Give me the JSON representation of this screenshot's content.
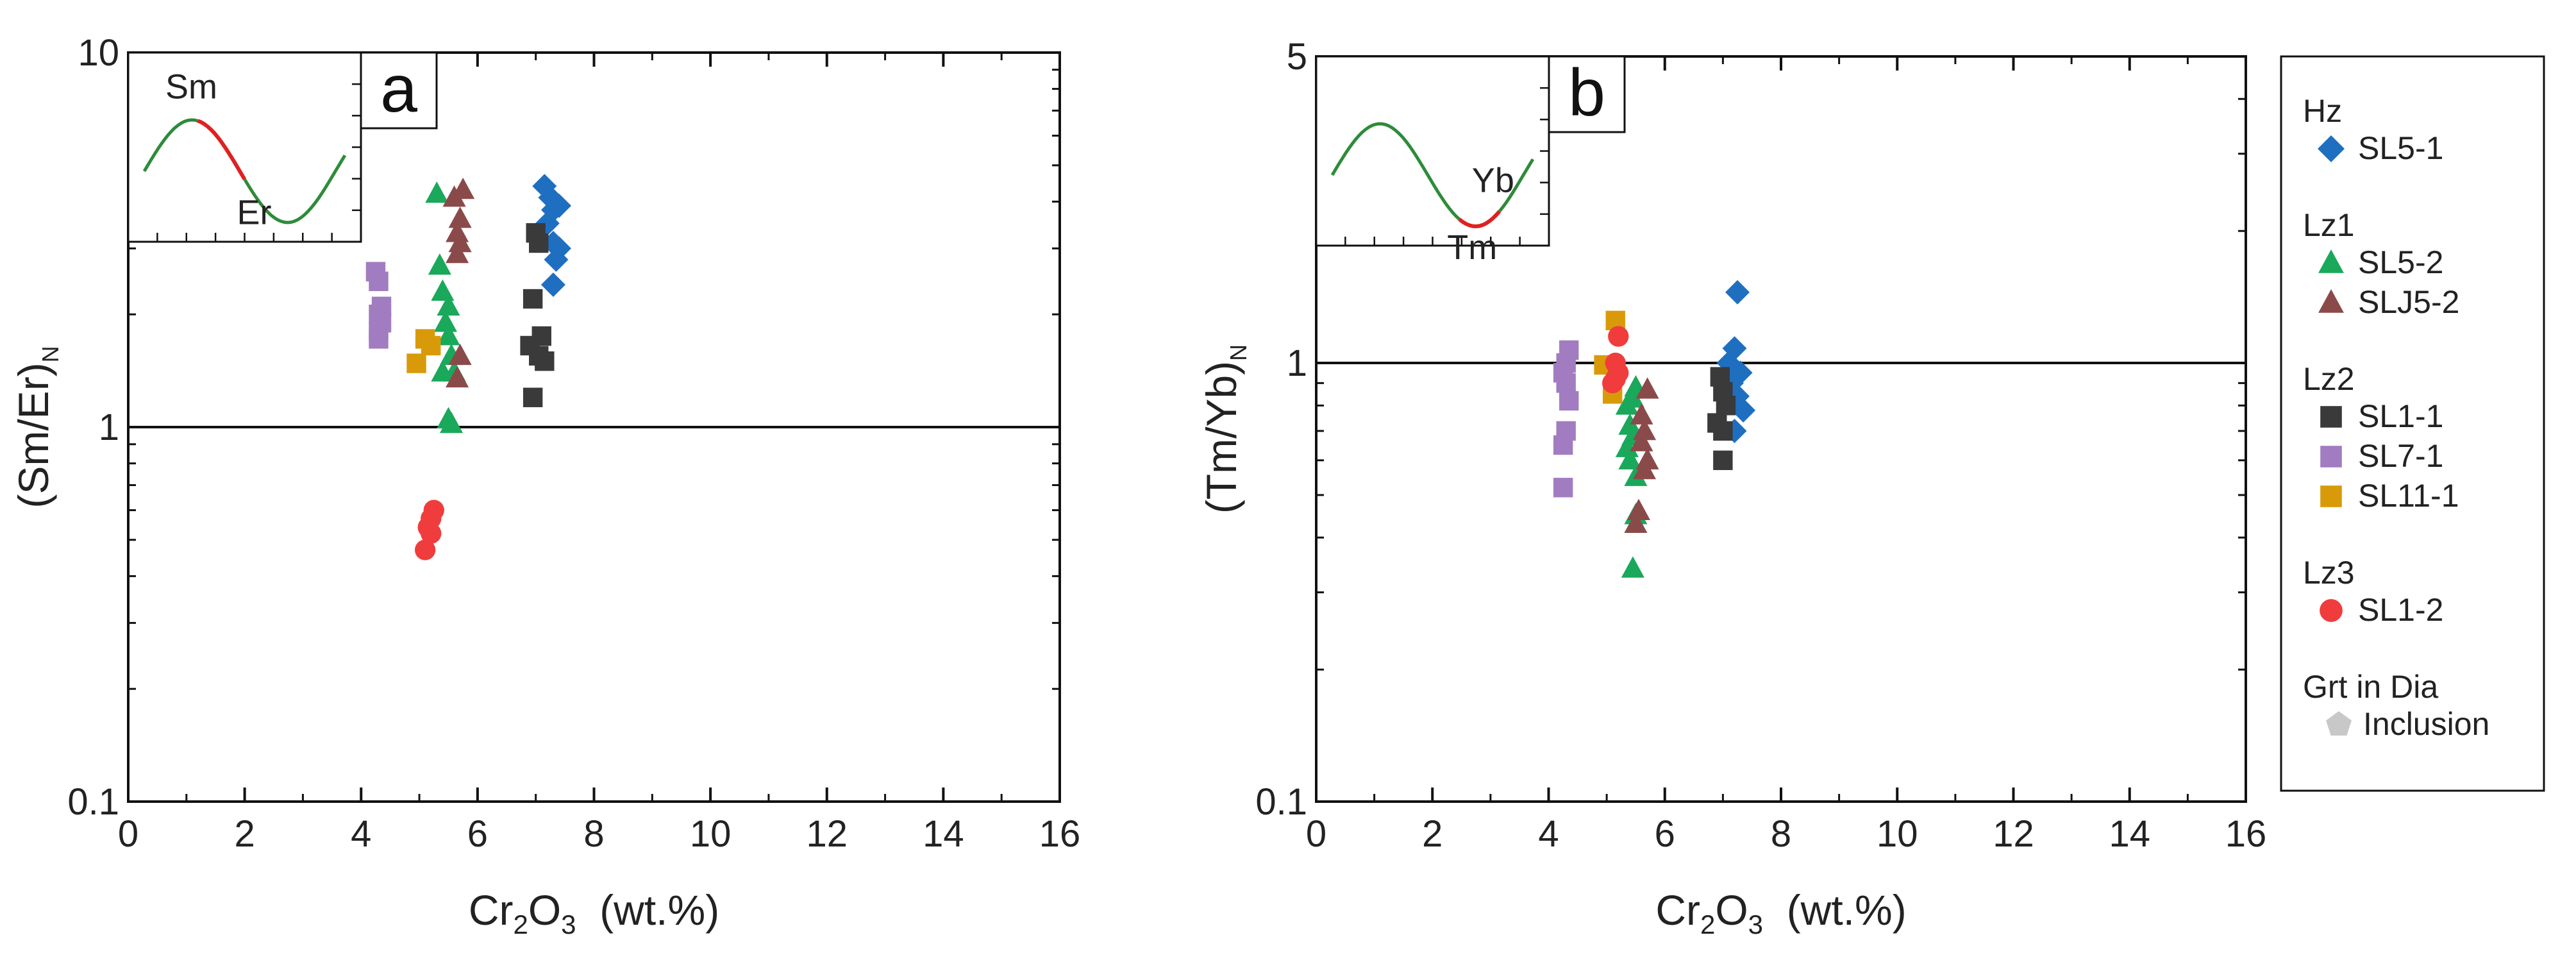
{
  "chart_data": [
    {
      "type": "scatter",
      "panel_label": "a",
      "title": "",
      "xlabel": {
        "main": "Cr",
        "sub1": "2",
        "mid": "O",
        "sub2": "3",
        "unit": "(wt.%)"
      },
      "ylabel": {
        "main": "(Sm/Er)",
        "sub": "N"
      },
      "xlim": [
        0,
        16
      ],
      "ylim": [
        0.1,
        10
      ],
      "yscale": "log",
      "xticks": [
        0,
        2,
        4,
        6,
        8,
        10,
        12,
        14,
        16
      ],
      "yticks": [
        0.1,
        1,
        10
      ],
      "ytick_labels": [
        "0.1",
        "1",
        "10"
      ],
      "reference_line_y": 1,
      "inset": {
        "label_left": "Sm",
        "label_right": "Er",
        "highlight": "Sm-Er segment"
      },
      "series": [
        {
          "name": "SL5-1",
          "group": "Hz",
          "marker": "diamond",
          "color": "#1f6fc0",
          "points": [
            [
              7.15,
              4.4
            ],
            [
              7.25,
              4.1
            ],
            [
              7.3,
              3.8
            ],
            [
              7.4,
              3.9
            ],
            [
              7.2,
              3.5
            ],
            [
              7.3,
              3.1
            ],
            [
              7.4,
              3.0
            ],
            [
              7.35,
              2.8
            ],
            [
              7.3,
              2.4
            ]
          ]
        },
        {
          "name": "SL5-2",
          "group": "Lz1",
          "marker": "triangle",
          "color": "#1aa85a",
          "points": [
            [
              5.3,
              4.2
            ],
            [
              5.35,
              2.7
            ],
            [
              5.4,
              2.3
            ],
            [
              5.5,
              2.1
            ],
            [
              5.45,
              1.9
            ],
            [
              5.5,
              1.75
            ],
            [
              5.55,
              1.55
            ],
            [
              5.4,
              1.4
            ],
            [
              5.6,
              1.4
            ],
            [
              5.5,
              1.05
            ],
            [
              5.55,
              1.02
            ]
          ]
        },
        {
          "name": "SLJ5-2",
          "group": "Lz1",
          "marker": "triangle",
          "color": "#8b4a4a",
          "points": [
            [
              5.75,
              4.3
            ],
            [
              5.6,
              4.1
            ],
            [
              5.7,
              3.6
            ],
            [
              5.65,
              3.3
            ],
            [
              5.7,
              3.1
            ],
            [
              5.65,
              2.9
            ],
            [
              5.7,
              1.55
            ],
            [
              5.65,
              1.35
            ]
          ]
        },
        {
          "name": "SL1-1",
          "group": "Lz2",
          "marker": "square",
          "color": "#3a3a3a",
          "points": [
            [
              7.0,
              3.3
            ],
            [
              7.05,
              3.1
            ],
            [
              6.95,
              2.2
            ],
            [
              7.1,
              1.75
            ],
            [
              6.9,
              1.65
            ],
            [
              7.05,
              1.55
            ],
            [
              7.15,
              1.5
            ],
            [
              6.95,
              1.2
            ]
          ]
        },
        {
          "name": "SL7-1",
          "group": "Lz2",
          "marker": "square",
          "color": "#a27cc0",
          "points": [
            [
              4.25,
              2.6
            ],
            [
              4.3,
              2.45
            ],
            [
              4.35,
              2.1
            ],
            [
              4.3,
              2.0
            ],
            [
              4.35,
              1.9
            ],
            [
              4.3,
              1.8
            ],
            [
              4.3,
              1.72
            ]
          ]
        },
        {
          "name": "SL11-1",
          "group": "Lz2",
          "marker": "square",
          "color": "#d99a0a",
          "points": [
            [
              5.1,
              1.72
            ],
            [
              5.2,
              1.65
            ],
            [
              4.95,
              1.48
            ]
          ]
        },
        {
          "name": "SL1-2",
          "group": "Lz3",
          "marker": "circle",
          "color": "#f03c3c",
          "points": [
            [
              5.25,
              0.6
            ],
            [
              5.2,
              0.57
            ],
            [
              5.15,
              0.54
            ],
            [
              5.2,
              0.52
            ],
            [
              5.1,
              0.47
            ]
          ]
        }
      ]
    },
    {
      "type": "scatter",
      "panel_label": "b",
      "title": "",
      "xlabel": {
        "main": "Cr",
        "sub1": "2",
        "mid": "O",
        "sub2": "3",
        "unit": "(wt.%)"
      },
      "ylabel": {
        "main": "(Tm/Yb)",
        "sub": "N"
      },
      "xlim": [
        0,
        16
      ],
      "ylim": [
        0.1,
        5
      ],
      "yscale": "log",
      "xticks": [
        0,
        2,
        4,
        6,
        8,
        10,
        12,
        14,
        16
      ],
      "yticks": [
        0.1,
        1,
        5
      ],
      "ytick_labels": [
        "0.1",
        "1",
        "5"
      ],
      "reference_line_y": 1,
      "inset": {
        "label_left": "Tm",
        "label_right": "Yb",
        "highlight": "Tm-Yb segment"
      },
      "series": [
        {
          "name": "SL5-1",
          "group": "Hz",
          "marker": "diamond",
          "color": "#1f6fc0",
          "points": [
            [
              7.25,
              1.45
            ],
            [
              7.2,
              1.08
            ],
            [
              7.1,
              1.0
            ],
            [
              7.3,
              0.95
            ],
            [
              7.15,
              0.9
            ],
            [
              7.25,
              0.84
            ],
            [
              7.35,
              0.78
            ],
            [
              7.2,
              0.7
            ]
          ]
        },
        {
          "name": "SL5-2",
          "group": "Lz1",
          "marker": "triangle",
          "color": "#1aa85a",
          "points": [
            [
              5.5,
              0.88
            ],
            [
              5.45,
              0.83
            ],
            [
              5.35,
              0.8
            ],
            [
              5.4,
              0.72
            ],
            [
              5.45,
              0.68
            ],
            [
              5.35,
              0.64
            ],
            [
              5.4,
              0.6
            ],
            [
              5.5,
              0.55
            ],
            [
              5.5,
              0.45
            ],
            [
              5.45,
              0.34
            ]
          ]
        },
        {
          "name": "SLJ5-2",
          "group": "Lz1",
          "marker": "triangle",
          "color": "#8b4a4a",
          "points": [
            [
              5.7,
              0.87
            ],
            [
              5.6,
              0.76
            ],
            [
              5.65,
              0.7
            ],
            [
              5.6,
              0.66
            ],
            [
              5.7,
              0.6
            ],
            [
              5.65,
              0.57
            ],
            [
              5.55,
              0.46
            ],
            [
              5.5,
              0.43
            ]
          ]
        },
        {
          "name": "SL1-1",
          "group": "Lz2",
          "marker": "square",
          "color": "#3a3a3a",
          "points": [
            [
              6.95,
              0.93
            ],
            [
              7.0,
              0.86
            ],
            [
              7.05,
              0.8
            ],
            [
              6.9,
              0.73
            ],
            [
              7.0,
              0.7
            ],
            [
              7.0,
              0.6
            ]
          ]
        },
        {
          "name": "SL7-1",
          "group": "Lz2",
          "marker": "square",
          "color": "#a27cc0",
          "points": [
            [
              4.35,
              1.07
            ],
            [
              4.3,
              1.0
            ],
            [
              4.25,
              0.95
            ],
            [
              4.3,
              0.9
            ],
            [
              4.35,
              0.82
            ],
            [
              4.3,
              0.7
            ],
            [
              4.25,
              0.65
            ],
            [
              4.25,
              0.52
            ]
          ]
        },
        {
          "name": "SL11-1",
          "group": "Lz2",
          "marker": "square",
          "color": "#d99a0a",
          "points": [
            [
              5.15,
              1.25
            ],
            [
              4.95,
              0.99
            ],
            [
              5.1,
              0.85
            ]
          ]
        },
        {
          "name": "SL1-2",
          "group": "Lz3",
          "marker": "circle",
          "color": "#f03c3c",
          "points": [
            [
              5.2,
              1.15
            ],
            [
              5.15,
              1.0
            ],
            [
              5.2,
              0.95
            ],
            [
              5.15,
              0.92
            ],
            [
              5.1,
              0.9
            ]
          ]
        }
      ]
    }
  ],
  "legend": {
    "groups": [
      {
        "label": "Hz",
        "items": [
          {
            "label": "SL5-1",
            "marker": "diamond",
            "color": "#1f6fc0"
          }
        ]
      },
      {
        "label": "Lz1",
        "items": [
          {
            "label": "SL5-2",
            "marker": "triangle",
            "color": "#1aa85a"
          },
          {
            "label": "SLJ5-2",
            "marker": "triangle",
            "color": "#8b4a4a"
          }
        ]
      },
      {
        "label": "Lz2",
        "items": [
          {
            "label": "SL1-1",
            "marker": "square",
            "color": "#3a3a3a"
          },
          {
            "label": "SL7-1",
            "marker": "square",
            "color": "#a27cc0"
          },
          {
            "label": "SL11-1",
            "marker": "square",
            "color": "#d99a0a"
          }
        ]
      },
      {
        "label": "Lz3",
        "items": [
          {
            "label": "SL1-2",
            "marker": "circle",
            "color": "#f03c3c"
          }
        ]
      },
      {
        "label": "Grt in Dia",
        "items": [
          {
            "label": "Inclusion",
            "marker": "pentagon",
            "color": "#c8c8c8"
          }
        ]
      }
    ]
  }
}
